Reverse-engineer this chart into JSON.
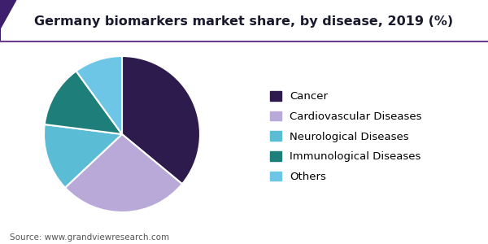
{
  "title": "Germany biomarkers market share, by disease, 2019 (%)",
  "source": "Source: www.grandviewresearch.com",
  "labels": [
    "Cancer",
    "Cardiovascular Diseases",
    "Neurological Diseases",
    "Immunological Diseases",
    "Others"
  ],
  "values": [
    36,
    27,
    14,
    13,
    10
  ],
  "colors": [
    "#2d1b4e",
    "#b8a9d9",
    "#5bbcd6",
    "#1e7f7a",
    "#6ec6e6"
  ],
  "legend_labels": [
    "Cancer",
    "Cardiovascular Diseases",
    "Neurological Diseases",
    "Immunological Diseases",
    "Others"
  ],
  "title_fontsize": 11.5,
  "source_fontsize": 7.5,
  "legend_fontsize": 9.5,
  "background_color": "#ffffff",
  "startangle": 90,
  "header_line_color": "#6a3d8f",
  "accent_triangle_color": "#3d1f6e",
  "title_color": "#1a1a2e"
}
